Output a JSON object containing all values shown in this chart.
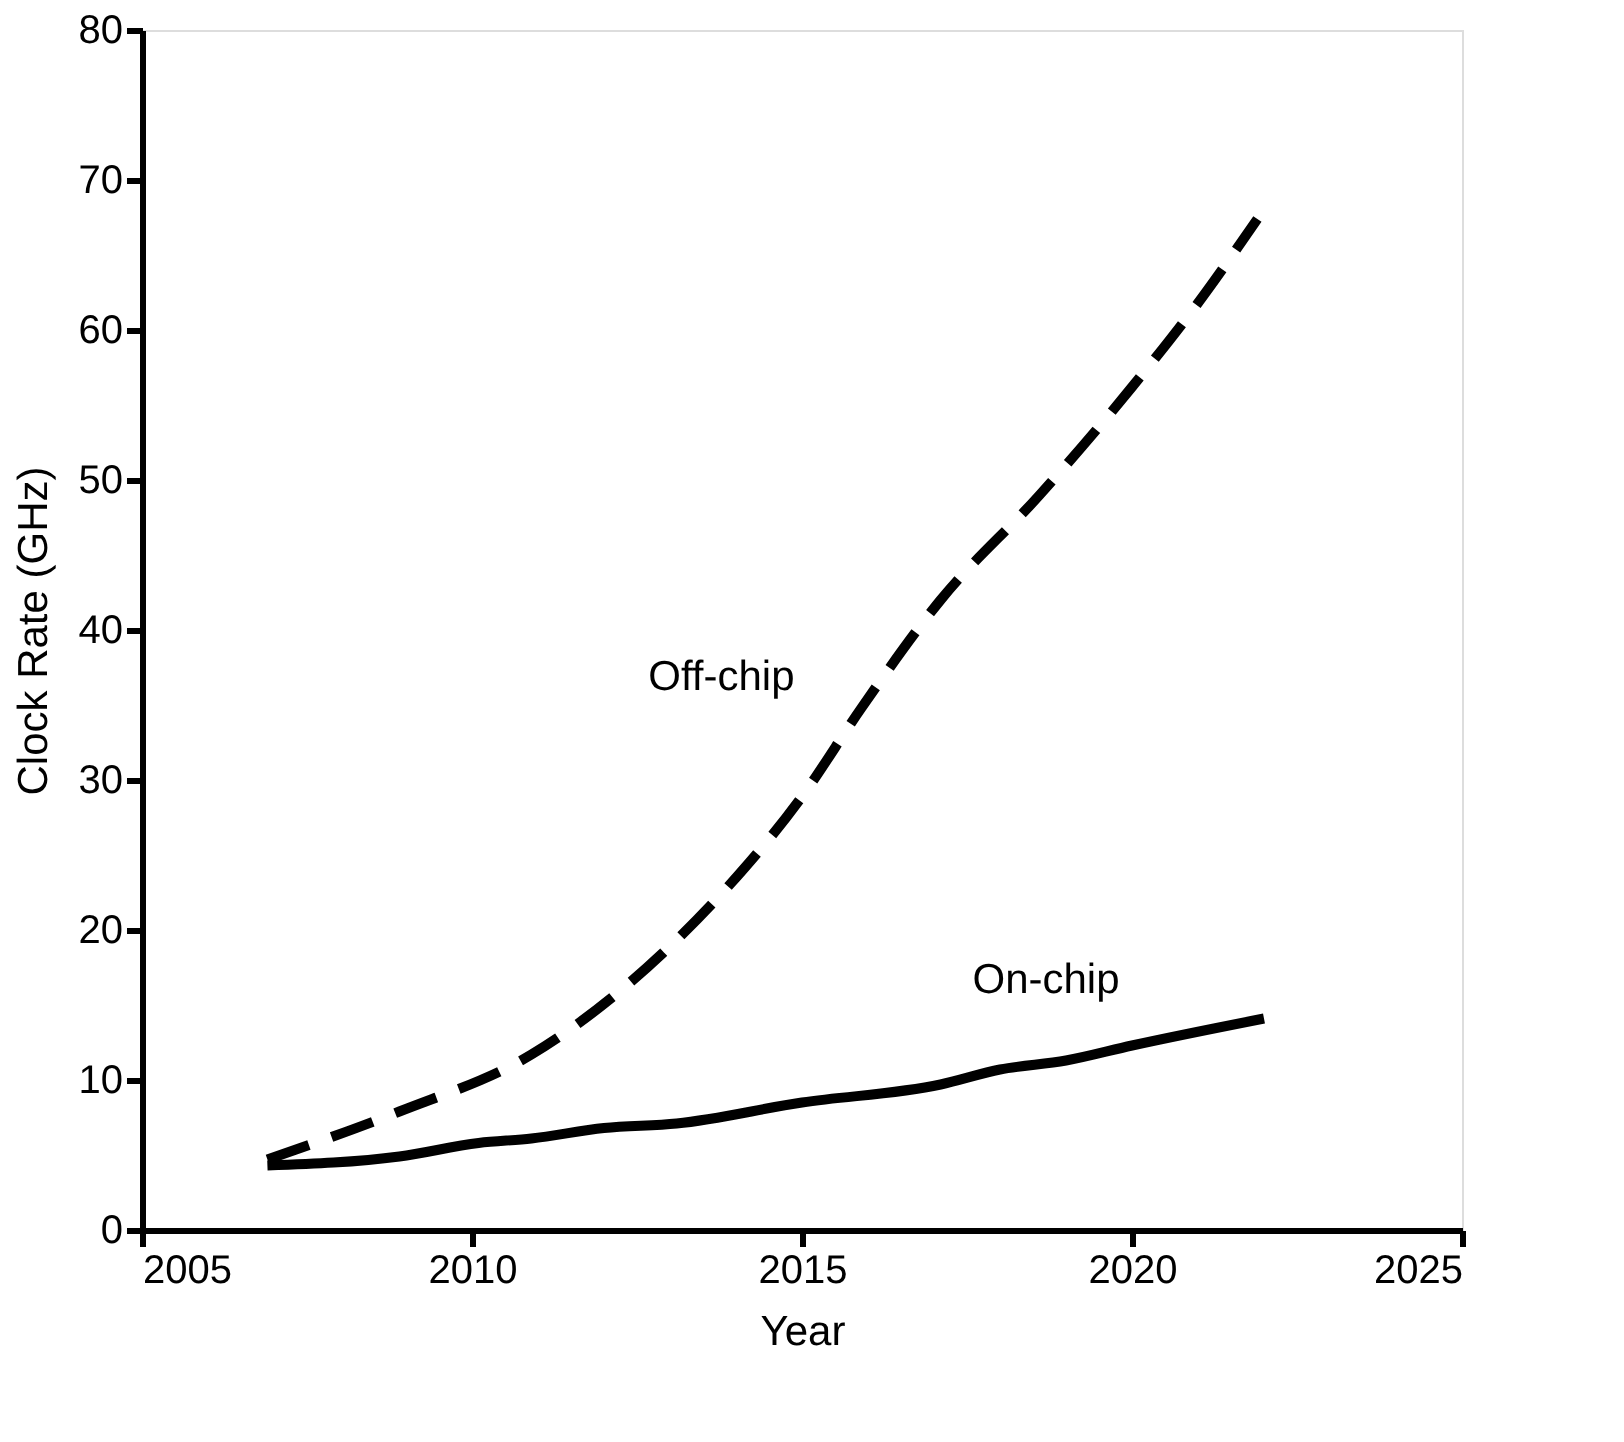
{
  "chart_data": {
    "type": "line",
    "xlabel": "Year",
    "ylabel": "Clock Rate (GHz)",
    "xlim": [
      2005,
      2025
    ],
    "xticks": [
      2005,
      2010,
      2015,
      2020,
      2025
    ],
    "ylim": [
      0,
      80
    ],
    "yticks": [
      0,
      10,
      20,
      30,
      40,
      50,
      60,
      70,
      80
    ],
    "grid": false,
    "legend": false,
    "series": [
      {
        "name": "Off-chip",
        "color": "#000000",
        "line_style": "dashed",
        "x": [
          2006.9,
          2008.9,
          2010.9,
          2012.9,
          2013.9,
          2015.0,
          2015.9,
          2017.1,
          2018.6,
          2020.0,
          2021.0,
          2021.9
        ],
        "values": [
          4.7,
          7.9,
          11.7,
          18.5,
          23,
          28.9,
          34.8,
          42,
          49,
          56.2,
          61.8,
          67.4
        ]
      },
      {
        "name": "On-chip",
        "color": "#000000",
        "line_style": "solid",
        "x": [
          2006.9,
          2008.9,
          2010.1,
          2010.9,
          2012.0,
          2013.1,
          2015.0,
          2017.1,
          2018.0,
          2019.0,
          2020.0,
          2022.0
        ],
        "values": [
          4.3,
          4.9,
          5.8,
          6.1,
          6.8,
          7.1,
          8.5,
          9.7,
          10.7,
          11.3,
          12.3,
          14.1
        ]
      }
    ]
  }
}
